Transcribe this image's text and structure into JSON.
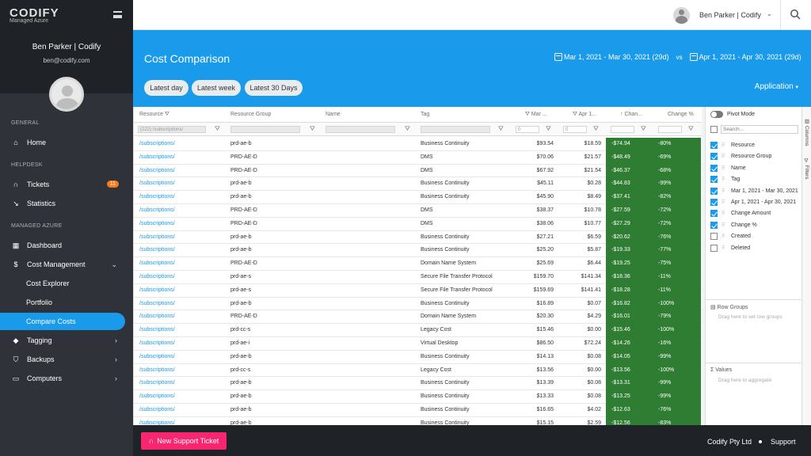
{
  "brand": {
    "logo": "CODIFY",
    "subtitle": "Managed Azure"
  },
  "user": {
    "name": "Ben Parker | Codify",
    "email": "ben@codify.com"
  },
  "sidebar": {
    "sections": {
      "general": "GENERAL",
      "helpdesk": "HELPDESK",
      "managed": "MANAGED AZURE"
    },
    "items": {
      "home": "Home",
      "tickets": "Tickets",
      "tickets_badge": "11",
      "statistics": "Statistics",
      "dashboard": "Dashboard",
      "cost_mgmt": "Cost Management",
      "cost_explorer": "Cost Explorer",
      "portfolio": "Portfolio",
      "compare_costs": "Compare Costs",
      "tagging": "Tagging",
      "backups": "Backups",
      "computers": "Computers"
    }
  },
  "header": {
    "title": "Cost Comparison",
    "range1": "Mar 1, 2021 - Mar 30, 2021 (29d)",
    "vs": "vs",
    "range2": "Apr 1, 2021 - Apr 30, 2021 (29d)",
    "app": "Application",
    "pills": [
      "Latest day",
      "Latest week",
      "Latest 30 Days"
    ]
  },
  "grid": {
    "columns": {
      "resource": "Resource",
      "rg": "Resource Group",
      "name": "Name",
      "tag": "Tag",
      "mar": "Mar ...",
      "apr": "Apr 1...",
      "chg": "Chan...",
      "pct": "Change %"
    },
    "filters": {
      "resource": "(222) /subscriptions/",
      "mar": "0",
      "apr": "0"
    },
    "rows": [
      [
        "/subscriptions/",
        "prd-ae-b",
        "Business Continuity",
        "$93.54",
        "$18.59",
        "-$74.94",
        "-80%"
      ],
      [
        "/subscriptions/",
        "PRD-AE-D",
        "DMS",
        "$70.06",
        "$21.57",
        "-$48.49",
        "-69%"
      ],
      [
        "/subscriptions/",
        "PRD-AE-D",
        "DMS",
        "$67.92",
        "$21.54",
        "-$46.37",
        "-68%"
      ],
      [
        "/subscriptions/",
        "prd-ae-b",
        "Business Continuity",
        "$45.11",
        "$0.28",
        "-$44.83",
        "-99%"
      ],
      [
        "/subscriptions/",
        "prd-ae-b",
        "Business Continuity",
        "$45.90",
        "$8.49",
        "-$37.41",
        "-82%"
      ],
      [
        "/subscriptions/",
        "PRD-AE-D",
        "DMS",
        "$38.37",
        "$10.78",
        "-$27.59",
        "-72%"
      ],
      [
        "/subscriptions/",
        "PRD-AE-D",
        "DMS",
        "$38.06",
        "$10.77",
        "-$27.29",
        "-72%"
      ],
      [
        "/subscriptions/",
        "prd-ae-b",
        "Business Continuity",
        "$27.21",
        "$6.59",
        "-$20.62",
        "-76%"
      ],
      [
        "/subscriptions/",
        "prd-ae-b",
        "Business Continuity",
        "$25.20",
        "$5.87",
        "-$19.33",
        "-77%"
      ],
      [
        "/subscriptions/",
        "PRD-AE-D",
        "Domain Name System",
        "$25.69",
        "$6.44",
        "-$19.25",
        "-75%"
      ],
      [
        "/subscriptions/",
        "prd-ae-s",
        "Secure File Transfer Protocol",
        "$159.70",
        "$141.34",
        "-$18.36",
        "-11%"
      ],
      [
        "/subscriptions/",
        "prd-ae-s",
        "Secure File Transfer Protocol",
        "$159.69",
        "$141.41",
        "-$18.28",
        "-11%"
      ],
      [
        "/subscriptions/",
        "prd-ae-b",
        "Business Continuity",
        "$16.89",
        "$0.07",
        "-$16.82",
        "-100%"
      ],
      [
        "/subscriptions/",
        "PRD-AE-D",
        "Domain Name System",
        "$20.30",
        "$4.29",
        "-$16.01",
        "-79%"
      ],
      [
        "/subscriptions/",
        "prd-cc-s",
        "Legacy Cost",
        "$15.46",
        "$0.00",
        "-$15.46",
        "-100%"
      ],
      [
        "/subscriptions/",
        "prd-ae-i",
        "Virtual Desktop",
        "$86.50",
        "$72.24",
        "-$14.26",
        "-16%"
      ],
      [
        "/subscriptions/",
        "prd-ae-b",
        "Business Continuity",
        "$14.13",
        "$0.08",
        "-$14.05",
        "-99%"
      ],
      [
        "/subscriptions/",
        "prd-cc-s",
        "Legacy Cost",
        "$13.56",
        "$0.00",
        "-$13.56",
        "-100%"
      ],
      [
        "/subscriptions/",
        "prd-ae-b",
        "Business Continuity",
        "$13.39",
        "$0.08",
        "-$13.31",
        "-99%"
      ],
      [
        "/subscriptions/",
        "prd-ae-b",
        "Business Continuity",
        "$13.33",
        "$0.08",
        "-$13.25",
        "-99%"
      ],
      [
        "/subscriptions/",
        "prd-ae-b",
        "Business Continuity",
        "$16.65",
        "$4.02",
        "-$12.63",
        "-76%"
      ],
      [
        "/subscriptions/",
        "prd-ae-b",
        "Business Continuity",
        "$15.15",
        "$2.59",
        "-$12.56",
        "-83%"
      ]
    ]
  },
  "panel": {
    "pivot": "Pivot Mode",
    "search_placeholder": "Search...",
    "columns": [
      "Resource",
      "Resource Group",
      "Name",
      "Tag",
      "Mar 1, 2021 - Mar 30, 2021",
      "Apr 1, 2021 - Apr 30, 2021",
      "Change Amount",
      "Change %",
      "Created",
      "Deleted"
    ],
    "checked": [
      true,
      true,
      true,
      true,
      true,
      true,
      true,
      true,
      false,
      false
    ],
    "row_groups": "Row Groups",
    "row_groups_hint": "Drag here to set row groups",
    "values": "Values",
    "values_hint": "Drag here to aggregate",
    "tab_columns": "Columns",
    "tab_filters": "Filters"
  },
  "footer": {
    "ticket": "New Support Ticket",
    "company": "Codify Pty Ltd",
    "support": "Support"
  },
  "colors": {
    "accent": "#1a9aeb",
    "sidebar": "#2f3238",
    "negative": "#2e7d32",
    "ticket": "#f7266e"
  }
}
